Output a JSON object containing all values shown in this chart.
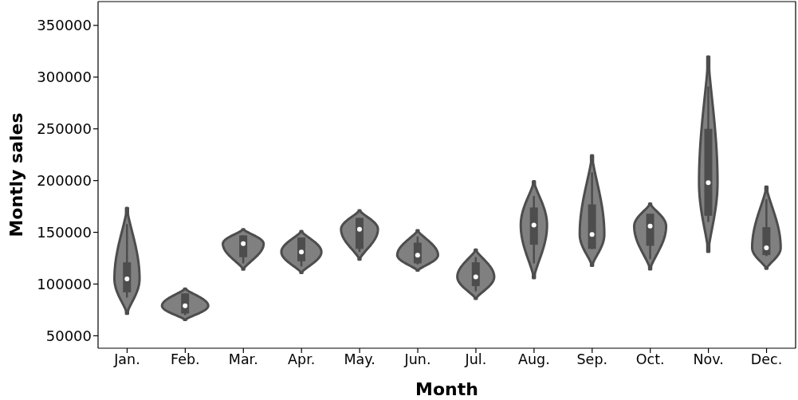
{
  "chart_data": {
    "type": "box",
    "xlabel": "Month",
    "ylabel": "Montly sales",
    "categories": [
      "Jan.",
      "Feb.",
      "Mar.",
      "Apr.",
      "May.",
      "Jun.",
      "Jul.",
      "Aug.",
      "Sep.",
      "Oct.",
      "Nov.",
      "Dec."
    ],
    "color": "#4d4d4d",
    "boxes": [
      {
        "low": 87000,
        "q1": 92000,
        "median": 105000,
        "q3": 121000,
        "high": 158000
      },
      {
        "low": 70000,
        "q1": 71500,
        "median": 79000,
        "q3": 91000,
        "high": 91000
      },
      {
        "low": 120000,
        "q1": 126000,
        "median": 139000,
        "q3": 147000,
        "high": 147000
      },
      {
        "low": 117000,
        "q1": 122000,
        "median": 131000,
        "q3": 145000,
        "high": 145000
      },
      {
        "low": 131000,
        "q1": 134000,
        "median": 153000,
        "q3": 164000,
        "high": 164000
      },
      {
        "low": 119000,
        "q1": 120000,
        "median": 128000,
        "q3": 140000,
        "high": 146000
      },
      {
        "low": 93000,
        "q1": 98000,
        "median": 107000,
        "q3": 121000,
        "high": 126000
      },
      {
        "low": 120000,
        "q1": 138000,
        "median": 157000,
        "q3": 174000,
        "high": 185000
      },
      {
        "low": 134000,
        "q1": 134000,
        "median": 148000,
        "q3": 177000,
        "high": 208000
      },
      {
        "low": 124000,
        "q1": 137000,
        "median": 156000,
        "q3": 168000,
        "high": 168000
      },
      {
        "low": 160000,
        "q1": 166000,
        "median": 198000,
        "q3": 250000,
        "high": 291000
      },
      {
        "low": 127000,
        "q1": 128000,
        "median": 135000,
        "q3": 155000,
        "high": 182000
      }
    ],
    "ylim": [
      38000,
      373000
    ],
    "yticks": [
      50000,
      100000,
      150000,
      200000,
      250000,
      300000,
      350000
    ]
  }
}
